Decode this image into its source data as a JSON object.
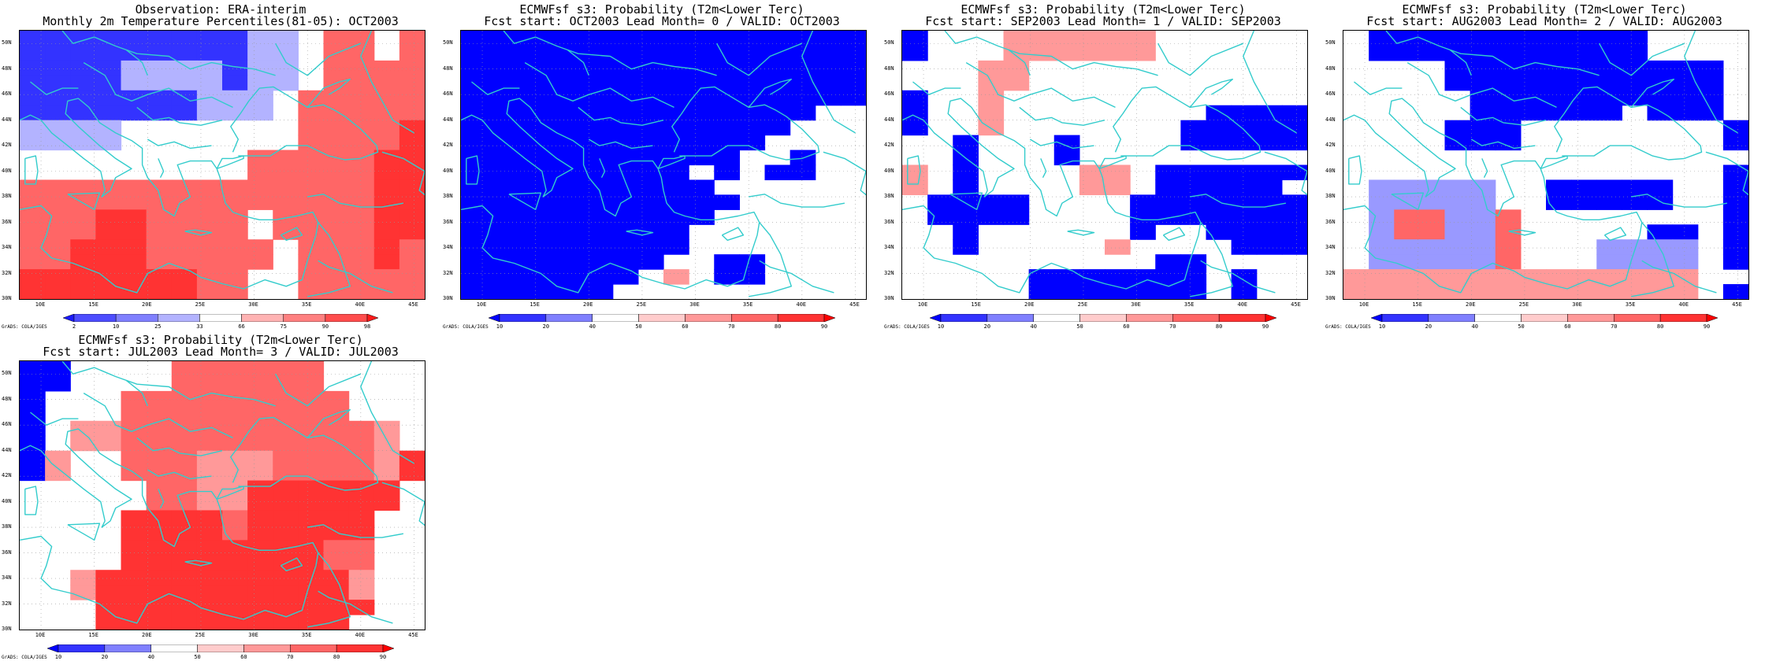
{
  "colors": {
    "deep_blue": "#0000ff",
    "blue": "#3333ff",
    "light_blue": "#9999ff",
    "lighter_blue": "#b3b3ff",
    "white": "#ffffff",
    "pink": "#ff9999",
    "light_red": "#ff6666",
    "red": "#ff3333",
    "deep_red": "#ff0000",
    "coast": "#33cccc"
  },
  "axes": {
    "lon_labels": [
      "10E",
      "15E",
      "20E",
      "25E",
      "30E",
      "35E",
      "40E",
      "45E"
    ],
    "lat_labels": [
      "50N",
      "48N",
      "46N",
      "44N",
      "42N",
      "40N",
      "38N",
      "36N",
      "34N",
      "32N",
      "30N"
    ],
    "lon_range": [
      8,
      46
    ],
    "lat_range": [
      30,
      51
    ]
  },
  "grads_label": "GrADS: COLA/IGES",
  "legend_obs": [
    "2",
    "10",
    "25",
    "33",
    "66",
    "75",
    "90",
    "98"
  ],
  "legend_prob": [
    "10",
    "20",
    "40",
    "50",
    "60",
    "70",
    "80",
    "90"
  ],
  "panels": [
    {
      "title1": "Observation: ERA-interim",
      "title2": "Monthly 2m Temperature Percentiles(81-05): OCT2003",
      "legend": "obs",
      "grid": [
        "BBBBBBBBBLL0RR0R",
        "BBBBBBBBBLL0RR0R",
        "BBBBLLLLBLL0RRRR",
        "BBBBLLLLBLL0RRRR",
        "BBBBBBBLLL0RRRRR",
        "BBBBBBBLLL0RRRRR",
        "LLLL0000000RRRRD",
        "LLLL0000000RRRRD",
        "000000000RRRRRDD",
        "000000000RRRRRDD",
        "RRRRRRRRRRRRRRDD",
        "RRRRRRRRRRRRRRDD",
        "RRRDDRRRR0RRRRDD",
        "RRRDDRRRR0RRRRDD",
        "RRDDDRRRRR0RRRDR",
        "RRDDDRRRRR0RRRDR",
        "DDDDDDDRR00RRRRR",
        "DDDDDDDRR00RRRRR"
      ]
    },
    {
      "title1": "ECMWFsf s3: Probability (T2m<Lower Terc)",
      "title2": "Fcst start: OCT2003  Lead Month= 0 / VALID: OCT2003",
      "legend": "prob",
      "grid": [
        "BBBBBBBBBBBBBBBB",
        "BBBBBBBBBBBBBBBB",
        "BBBBBBBBBBBBBBBB",
        "BBBBBBBBBBBBBBBB",
        "BBBBBBBBBBBBBBBB",
        "BBBBBBBBBBBBBB00",
        "BBBBBBBBBBBBB000",
        "BBBBBBBBBBBB0000",
        "BBBBBBBBBBB00B00",
        "BBBBBBBBB0B0BB00",
        "BBBBBBBBBB000000",
        "BBBBBBBBBBB00000",
        "BBBBBBBBBB000000",
        "BBBBBBBBB0000000",
        "BBBBBBBBB0000000",
        "BBBBBBBB00BB0000",
        "BBBBBBB0P0BB0000",
        "BBBBBB0000000000"
      ]
    },
    {
      "title1": "ECMWFsf s3: Probability (T2m<Lower Terc)",
      "title2": "Fcst start: SEP2003  Lead Month= 1 / VALID: SEP2003",
      "legend": "prob",
      "grid": [
        "B000PPPPPP000000",
        "B000PPPPPP000000",
        "000PP00000000000",
        "000PP00000000000",
        "B00P000000000000",
        "B00P00000000BBBB",
        "B00P0000000BBBBB",
        "00B000B0000BBBBB",
        "00B000B000000000",
        "P0B0000PP0BBBBBB",
        "P0B0000PP0BBBBB0",
        "0BBBB0000BBBBBBB",
        "0BBBB0000BBBBBBB",
        "00B000000B00BBBB",
        "00B00000P0000BBB",
        "0000000000BB0000",
        "00000BBBBBBB0B00",
        "00000BBBBBBB0B00"
      ]
    },
    {
      "title1": "ECMWFsf s3: Probability (T2m<Lower Terc)",
      "title2": "Fcst start: AUG2003  Lead Month= 2 / VALID: AUG2003",
      "legend": "prob",
      "grid": [
        "0BBBBBBBBBBB0000",
        "0BBBBBBBBBBB0000",
        "0000BBBBBBBBBBB0",
        "0000BBBBBBBBBBB0",
        "00000BBBBBBBBBB0",
        "00000BBBBBB0BBB0",
        "0000BBB00000000B",
        "0000BBB00000000B",
        "0000000000000000",
        "000000000000000B",
        "0LLLLL00BBBBB00B",
        "0LLLLL00BBBBB00B",
        "0LRRLLR00000000B",
        "0LRRLLR00000BB0B",
        "0LLLLLR000LLLL0B",
        "0LLLLLR000LLLL0B",
        "PPPPPPPPPPPPPP00",
        "PPPPPPPPPPPPPP0B"
      ]
    },
    {
      "title1": "ECMWFsf s3: Probability (T2m<Lower Terc)",
      "title2": "Fcst start: JUL2003  Lead Month= 3 / VALID: JUL2003",
      "legend": "prob",
      "grid": [
        "BB0000RRRRRR0000",
        "BB0000RRRRRR0000",
        "B000RRRRRRRRR000",
        "B000RRRRRRRRR000",
        "B0PPRRRRRRRRRRP0",
        "B0PPRRRRRRRRRRP0",
        "BP00RRRPPPRRRRPD",
        "BP00RRRPPPRRRRPD",
        "00000RRPPDDDDDD0",
        "00000RRPPDDDDDD0",
        "0000DDDDRDDDDD00",
        "0000DDDDRDDDDD00",
        "0000DDDDDDDDRR00",
        "0000DDDDDDDDRR00",
        "00PDDDDDDDDDDP00",
        "00PDDDDDDDDDDP00",
        "000DDDDDDDDDDD00",
        "000DDDDDDDDDD000"
      ]
    }
  ]
}
